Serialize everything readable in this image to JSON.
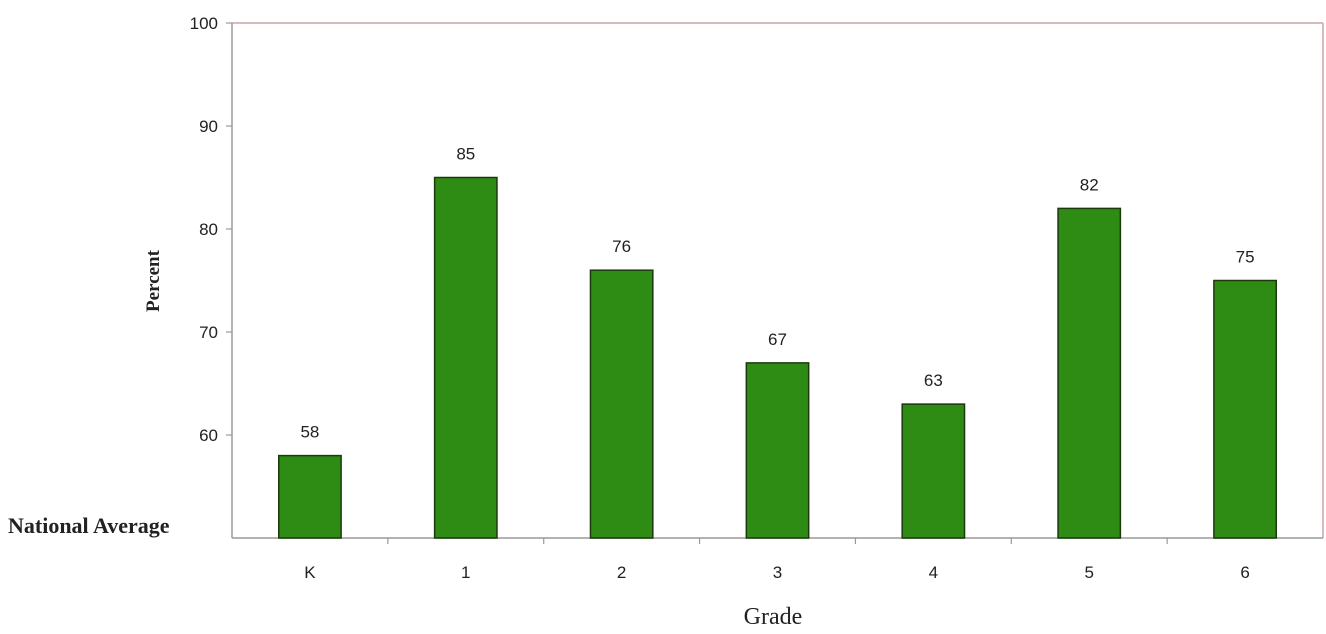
{
  "chart_data": {
    "type": "bar",
    "categories": [
      "K",
      "1",
      "2",
      "3",
      "4",
      "5",
      "6"
    ],
    "values": [
      58,
      85,
      76,
      67,
      63,
      82,
      75
    ],
    "data_labels": [
      "58",
      "85",
      "76",
      "67",
      "63",
      "82",
      "75"
    ],
    "xlabel": "Grade",
    "ylabel": "Percent",
    "baseline_label": "National Average",
    "ylim": [
      50,
      100
    ],
    "yticks": [
      60,
      70,
      80,
      90,
      100
    ],
    "ytick_labels": [
      "60",
      "70",
      "80",
      "90",
      "100"
    ],
    "grid": false,
    "legend": "none",
    "colors": {
      "bar_fill": "#2e8b14",
      "bar_stroke": "#1a3a0c",
      "plot_border_top": "#c9a7a7",
      "axis": "#9a9a9a",
      "plot_border_right": "#c9a7a7"
    }
  }
}
